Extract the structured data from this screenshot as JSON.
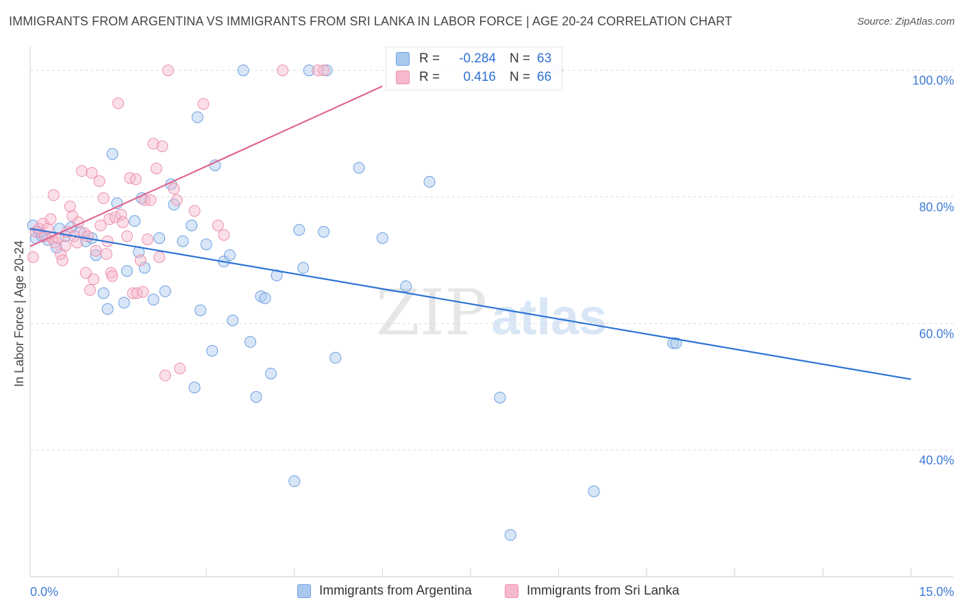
{
  "header": {
    "title": "IMMIGRANTS FROM ARGENTINA VS IMMIGRANTS FROM SRI LANKA IN LABOR FORCE | AGE 20-24 CORRELATION CHART",
    "source": "Source: ZipAtlas.com"
  },
  "legend": {
    "rows": [
      {
        "r_label": "R =",
        "r_value": "-0.284",
        "n_label": "N =",
        "n_value": "63"
      },
      {
        "r_label": "R =",
        "r_value": "0.416",
        "n_label": "N =",
        "n_value": "66"
      }
    ]
  },
  "bottom_legend": {
    "argentina": "Immigrants from Argentina",
    "sri_lanka": "Immigrants from Sri Lanka"
  },
  "watermark": {
    "zip": "ZIP",
    "atlas": "atlas"
  },
  "colors": {
    "argentina_fill": "#a9c8ee",
    "argentina_stroke": "#6b9ee0",
    "argentina_line": "#2a72d5",
    "sri_lanka_fill": "#f6b8cb",
    "sri_lanka_stroke": "#ec8fac",
    "sri_lanka_line": "#e0648f",
    "tick_label": "#3d7bd6",
    "grid": "#dcdcdc"
  },
  "chart_data": {
    "type": "scatter",
    "title": "IMMIGRANTS FROM ARGENTINA VS IMMIGRANTS FROM SRI LANKA IN LABOR FORCE | AGE 20-24 CORRELATION CHART",
    "xlabel": "",
    "ylabel": "In Labor Force | Age 20-24",
    "xlim": [
      0,
      15
    ],
    "ylim": [
      20,
      103
    ],
    "x_ticks": [
      "0.0%",
      "15.0%"
    ],
    "y_ticks": [
      {
        "value": 100,
        "label": "100.0%"
      },
      {
        "value": 80,
        "label": "80.0%"
      },
      {
        "value": 60,
        "label": "60.0%"
      },
      {
        "value": 40,
        "label": "40.0%"
      }
    ],
    "grid": "horizontal dashed",
    "legend_position": "top-center",
    "series": [
      {
        "name": "Immigrants from Argentina",
        "r": -0.284,
        "n": 63,
        "trend": {
          "x0": 0,
          "y0": 75.0,
          "x1": 15,
          "y1": 51.2
        },
        "points": [
          [
            0.05,
            75.5
          ],
          [
            0.1,
            73.5
          ],
          [
            0.15,
            74.5
          ],
          [
            0.2,
            73.8
          ],
          [
            0.3,
            73.2
          ],
          [
            0.45,
            72.0
          ],
          [
            0.5,
            75.0
          ],
          [
            0.6,
            73.8
          ],
          [
            0.7,
            75.2
          ],
          [
            0.85,
            74.5
          ],
          [
            0.95,
            73.0
          ],
          [
            1.05,
            73.5
          ],
          [
            1.12,
            70.8
          ],
          [
            1.25,
            64.8
          ],
          [
            1.32,
            62.3
          ],
          [
            1.4,
            86.8
          ],
          [
            1.48,
            79.0
          ],
          [
            1.6,
            63.3
          ],
          [
            1.65,
            68.3
          ],
          [
            1.78,
            76.2
          ],
          [
            1.85,
            71.3
          ],
          [
            1.9,
            79.8
          ],
          [
            1.95,
            68.8
          ],
          [
            2.1,
            63.8
          ],
          [
            2.2,
            73.5
          ],
          [
            2.3,
            65.1
          ],
          [
            2.4,
            82.0
          ],
          [
            2.45,
            78.8
          ],
          [
            2.6,
            73.0
          ],
          [
            2.75,
            75.5
          ],
          [
            2.85,
            92.6
          ],
          [
            2.9,
            62.1
          ],
          [
            2.8,
            49.9
          ],
          [
            3.0,
            72.5
          ],
          [
            3.1,
            55.7
          ],
          [
            3.15,
            85.0
          ],
          [
            3.3,
            69.8
          ],
          [
            3.4,
            70.8
          ],
          [
            3.45,
            60.5
          ],
          [
            3.63,
            100.0
          ],
          [
            3.75,
            57.1
          ],
          [
            3.85,
            48.4
          ],
          [
            3.93,
            64.3
          ],
          [
            4.0,
            64.0
          ],
          [
            4.1,
            52.1
          ],
          [
            4.2,
            67.6
          ],
          [
            4.5,
            35.1
          ],
          [
            4.58,
            74.8
          ],
          [
            4.65,
            68.8
          ],
          [
            4.75,
            100.0
          ],
          [
            5.0,
            74.5
          ],
          [
            5.05,
            100.0
          ],
          [
            5.2,
            54.6
          ],
          [
            5.6,
            84.6
          ],
          [
            6.0,
            73.5
          ],
          [
            6.4,
            65.9
          ],
          [
            6.8,
            82.4
          ],
          [
            8.0,
            48.3
          ],
          [
            8.18,
            26.6
          ],
          [
            8.97,
            100.0
          ],
          [
            9.6,
            33.5
          ],
          [
            10.95,
            56.9
          ],
          [
            11.0,
            56.9
          ]
        ]
      },
      {
        "name": "Immigrants from Sri Lanka",
        "r": 0.416,
        "n": 66,
        "trend": {
          "x0": 0,
          "y0": 72.2,
          "x1": 6.0,
          "y1": 97.5
        },
        "points": [
          [
            0.05,
            70.5
          ],
          [
            0.1,
            74.5
          ],
          [
            0.15,
            75.0
          ],
          [
            0.22,
            75.8
          ],
          [
            0.25,
            73.8
          ],
          [
            0.3,
            75.0
          ],
          [
            0.35,
            76.5
          ],
          [
            0.38,
            73.5
          ],
          [
            0.4,
            80.3
          ],
          [
            0.42,
            72.8
          ],
          [
            0.48,
            73.5
          ],
          [
            0.52,
            71.0
          ],
          [
            0.55,
            70.0
          ],
          [
            0.6,
            72.3
          ],
          [
            0.63,
            74.5
          ],
          [
            0.68,
            78.5
          ],
          [
            0.72,
            77.0
          ],
          [
            0.75,
            73.8
          ],
          [
            0.8,
            72.8
          ],
          [
            0.82,
            76.0
          ],
          [
            0.88,
            84.1
          ],
          [
            0.92,
            74.3
          ],
          [
            0.95,
            68.0
          ],
          [
            0.98,
            73.8
          ],
          [
            1.02,
            65.3
          ],
          [
            1.05,
            83.8
          ],
          [
            1.08,
            67.0
          ],
          [
            1.12,
            71.5
          ],
          [
            1.18,
            82.5
          ],
          [
            1.2,
            75.5
          ],
          [
            1.25,
            79.8
          ],
          [
            1.3,
            71.0
          ],
          [
            1.32,
            73.0
          ],
          [
            1.35,
            76.5
          ],
          [
            1.38,
            68.0
          ],
          [
            1.4,
            67.5
          ],
          [
            1.45,
            76.8
          ],
          [
            1.5,
            94.8
          ],
          [
            1.55,
            77.2
          ],
          [
            1.58,
            76.0
          ],
          [
            1.65,
            73.8
          ],
          [
            1.7,
            83.0
          ],
          [
            1.75,
            64.8
          ],
          [
            1.8,
            82.8
          ],
          [
            1.82,
            64.8
          ],
          [
            1.88,
            70.0
          ],
          [
            1.92,
            65.0
          ],
          [
            1.95,
            79.5
          ],
          [
            2.0,
            73.3
          ],
          [
            2.05,
            79.5
          ],
          [
            2.1,
            88.4
          ],
          [
            2.15,
            84.5
          ],
          [
            2.2,
            70.5
          ],
          [
            2.25,
            88.0
          ],
          [
            2.3,
            51.8
          ],
          [
            2.35,
            100.0
          ],
          [
            2.45,
            81.3
          ],
          [
            2.5,
            79.5
          ],
          [
            2.55,
            52.9
          ],
          [
            2.8,
            77.8
          ],
          [
            2.95,
            94.7
          ],
          [
            3.2,
            75.5
          ],
          [
            3.3,
            74.0
          ],
          [
            4.3,
            100.0
          ],
          [
            4.9,
            100.0
          ],
          [
            5.0,
            100.0
          ]
        ]
      }
    ]
  }
}
